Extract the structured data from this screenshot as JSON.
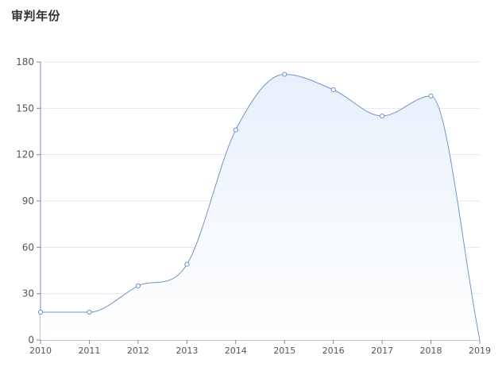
{
  "title": "审判年份",
  "colors": {
    "line": "#6f95c8",
    "area_top": "#e8f0fb",
    "area_bottom": "#ffffff",
    "grid": "#e3e8ef",
    "axis": "#7a8ca8"
  },
  "chart_data": {
    "type": "area",
    "title": "审判年份",
    "xlabel": "",
    "ylabel": "",
    "x": [
      "2010",
      "2011",
      "2012",
      "2013",
      "2014",
      "2015",
      "2016",
      "2017",
      "2018",
      "2019"
    ],
    "values": [
      18,
      18,
      35,
      49,
      136,
      172,
      162,
      145,
      158,
      0
    ],
    "y_ticks": [
      0,
      30,
      60,
      90,
      120,
      150,
      180
    ],
    "ylim": [
      0,
      180
    ],
    "grid": true,
    "marker_on_last_point": false
  }
}
